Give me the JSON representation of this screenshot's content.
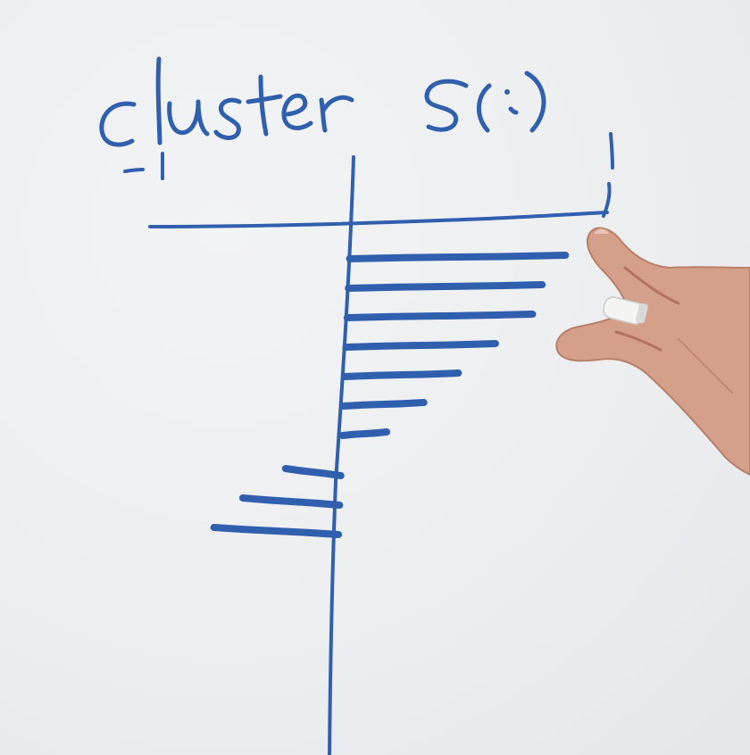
{
  "scene": {
    "description_kind": "whiteboard-photo",
    "ink_color": "#2f5fad",
    "board_color": "#eceef0",
    "handwritten_title": "cluster S(i)",
    "axis_tick_left": "-1",
    "axis_tick_right": "1"
  },
  "sketch": {
    "bar_values": [
      0.78,
      0.7,
      0.67,
      0.54,
      0.41,
      0.29,
      0.16,
      -0.2,
      -0.35,
      -0.45
    ]
  }
}
